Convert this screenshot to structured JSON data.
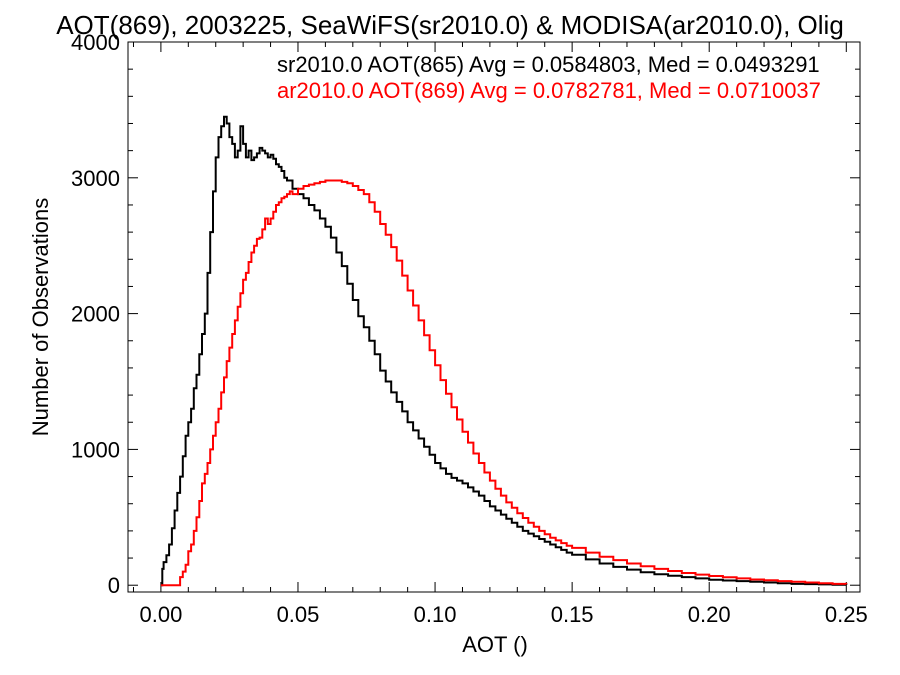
{
  "chart_data": {
    "type": "line",
    "title": "AOT(869), 2003225, SeaWiFS(sr2010.0) & MODISA(ar2010.0), Olig",
    "xlabel": "AOT ()",
    "ylabel": "Number of Observations",
    "xlim": [
      -0.012,
      0.255
    ],
    "ylim": [
      -50,
      4000
    ],
    "x_ticks": [
      0.0,
      0.05,
      0.1,
      0.15,
      0.2,
      0.25
    ],
    "x_tick_labels": [
      "0.00",
      "0.05",
      "0.10",
      "0.15",
      "0.20",
      "0.25"
    ],
    "y_ticks": [
      0,
      1000,
      2000,
      3000,
      4000
    ],
    "y_tick_labels": [
      "0",
      "1000",
      "2000",
      "3000",
      "4000"
    ],
    "grid": false,
    "legend_placement": "top-right",
    "annotations": [
      {
        "text": "sr2010.0 AOT(865) Avg = 0.0584803, Med = 0.0493291",
        "color": "#000000"
      },
      {
        "text": "ar2010.0 AOT(869) Avg = 0.0782781, Med = 0.0710037",
        "color": "#ff0000"
      }
    ],
    "series": [
      {
        "color": "#000000",
        "points": [
          [
            0.0,
            0
          ],
          [
            0.0005,
            120
          ],
          [
            0.001,
            170
          ],
          [
            0.002,
            220
          ],
          [
            0.003,
            300
          ],
          [
            0.004,
            420
          ],
          [
            0.005,
            550
          ],
          [
            0.006,
            680
          ],
          [
            0.007,
            800
          ],
          [
            0.008,
            950
          ],
          [
            0.009,
            1100
          ],
          [
            0.01,
            1200
          ],
          [
            0.011,
            1300
          ],
          [
            0.012,
            1450
          ],
          [
            0.013,
            1550
          ],
          [
            0.014,
            1700
          ],
          [
            0.015,
            1850
          ],
          [
            0.016,
            2000
          ],
          [
            0.017,
            2300
          ],
          [
            0.018,
            2600
          ],
          [
            0.019,
            2900
          ],
          [
            0.02,
            3150
          ],
          [
            0.021,
            3300
          ],
          [
            0.022,
            3380
          ],
          [
            0.023,
            3450
          ],
          [
            0.024,
            3400
          ],
          [
            0.025,
            3300
          ],
          [
            0.026,
            3250
          ],
          [
            0.027,
            3150
          ],
          [
            0.028,
            3200
          ],
          [
            0.029,
            3380
          ],
          [
            0.03,
            3250
          ],
          [
            0.031,
            3150
          ],
          [
            0.032,
            3200
          ],
          [
            0.033,
            3130
          ],
          [
            0.034,
            3150
          ],
          [
            0.035,
            3180
          ],
          [
            0.036,
            3220
          ],
          [
            0.037,
            3200
          ],
          [
            0.038,
            3180
          ],
          [
            0.039,
            3150
          ],
          [
            0.04,
            3170
          ],
          [
            0.041,
            3140
          ],
          [
            0.042,
            3100
          ],
          [
            0.043,
            3080
          ],
          [
            0.044,
            3050
          ],
          [
            0.045,
            3000
          ],
          [
            0.046,
            2980
          ],
          [
            0.048,
            2920
          ],
          [
            0.05,
            2880
          ],
          [
            0.052,
            2850
          ],
          [
            0.054,
            2800
          ],
          [
            0.056,
            2760
          ],
          [
            0.058,
            2700
          ],
          [
            0.06,
            2640
          ],
          [
            0.062,
            2560
          ],
          [
            0.064,
            2450
          ],
          [
            0.066,
            2350
          ],
          [
            0.068,
            2220
          ],
          [
            0.07,
            2100
          ],
          [
            0.072,
            1980
          ],
          [
            0.074,
            1900
          ],
          [
            0.076,
            1800
          ],
          [
            0.078,
            1700
          ],
          [
            0.08,
            1580
          ],
          [
            0.082,
            1500
          ],
          [
            0.084,
            1420
          ],
          [
            0.086,
            1350
          ],
          [
            0.088,
            1280
          ],
          [
            0.09,
            1200
          ],
          [
            0.092,
            1140
          ],
          [
            0.094,
            1080
          ],
          [
            0.096,
            1020
          ],
          [
            0.098,
            960
          ],
          [
            0.1,
            900
          ],
          [
            0.102,
            860
          ],
          [
            0.104,
            820
          ],
          [
            0.106,
            790
          ],
          [
            0.108,
            770
          ],
          [
            0.11,
            750
          ],
          [
            0.112,
            720
          ],
          [
            0.114,
            690
          ],
          [
            0.116,
            660
          ],
          [
            0.118,
            620
          ],
          [
            0.12,
            580
          ],
          [
            0.122,
            550
          ],
          [
            0.124,
            520
          ],
          [
            0.126,
            490
          ],
          [
            0.128,
            460
          ],
          [
            0.13,
            430
          ],
          [
            0.132,
            400
          ],
          [
            0.134,
            380
          ],
          [
            0.136,
            360
          ],
          [
            0.138,
            340
          ],
          [
            0.14,
            320
          ],
          [
            0.142,
            300
          ],
          [
            0.144,
            280
          ],
          [
            0.146,
            260
          ],
          [
            0.148,
            240
          ],
          [
            0.15,
            225
          ],
          [
            0.155,
            190
          ],
          [
            0.16,
            160
          ],
          [
            0.165,
            135
          ],
          [
            0.17,
            115
          ],
          [
            0.175,
            95
          ],
          [
            0.18,
            80
          ],
          [
            0.185,
            70
          ],
          [
            0.19,
            60
          ],
          [
            0.195,
            50
          ],
          [
            0.2,
            40
          ],
          [
            0.205,
            35
          ],
          [
            0.21,
            30
          ],
          [
            0.215,
            25
          ],
          [
            0.22,
            20
          ],
          [
            0.225,
            15
          ],
          [
            0.23,
            10
          ],
          [
            0.235,
            8
          ],
          [
            0.24,
            6
          ],
          [
            0.245,
            4
          ],
          [
            0.25,
            2
          ]
        ]
      },
      {
        "color": "#ff0000",
        "points": [
          [
            0.0,
            0
          ],
          [
            0.006,
            0
          ],
          [
            0.007,
            60
          ],
          [
            0.008,
            100
          ],
          [
            0.009,
            150
          ],
          [
            0.01,
            250
          ],
          [
            0.011,
            300
          ],
          [
            0.012,
            400
          ],
          [
            0.013,
            500
          ],
          [
            0.014,
            620
          ],
          [
            0.015,
            750
          ],
          [
            0.016,
            820
          ],
          [
            0.017,
            900
          ],
          [
            0.018,
            1000
          ],
          [
            0.019,
            1100
          ],
          [
            0.02,
            1200
          ],
          [
            0.021,
            1300
          ],
          [
            0.022,
            1420
          ],
          [
            0.023,
            1530
          ],
          [
            0.024,
            1650
          ],
          [
            0.025,
            1750
          ],
          [
            0.026,
            1850
          ],
          [
            0.027,
            1950
          ],
          [
            0.028,
            2050
          ],
          [
            0.029,
            2150
          ],
          [
            0.03,
            2250
          ],
          [
            0.031,
            2300
          ],
          [
            0.032,
            2380
          ],
          [
            0.033,
            2450
          ],
          [
            0.034,
            2500
          ],
          [
            0.035,
            2550
          ],
          [
            0.036,
            2560
          ],
          [
            0.037,
            2620
          ],
          [
            0.038,
            2700
          ],
          [
            0.039,
            2660
          ],
          [
            0.04,
            2700
          ],
          [
            0.041,
            2750
          ],
          [
            0.042,
            2800
          ],
          [
            0.043,
            2820
          ],
          [
            0.044,
            2850
          ],
          [
            0.045,
            2860
          ],
          [
            0.046,
            2880
          ],
          [
            0.047,
            2900
          ],
          [
            0.048,
            2880
          ],
          [
            0.05,
            2920
          ],
          [
            0.052,
            2940
          ],
          [
            0.054,
            2950
          ],
          [
            0.056,
            2960
          ],
          [
            0.058,
            2970
          ],
          [
            0.06,
            2980
          ],
          [
            0.062,
            2980
          ],
          [
            0.064,
            2980
          ],
          [
            0.066,
            2970
          ],
          [
            0.068,
            2960
          ],
          [
            0.07,
            2940
          ],
          [
            0.072,
            2910
          ],
          [
            0.074,
            2880
          ],
          [
            0.076,
            2820
          ],
          [
            0.078,
            2750
          ],
          [
            0.08,
            2660
          ],
          [
            0.082,
            2580
          ],
          [
            0.084,
            2490
          ],
          [
            0.086,
            2390
          ],
          [
            0.088,
            2280
          ],
          [
            0.09,
            2170
          ],
          [
            0.092,
            2060
          ],
          [
            0.094,
            1950
          ],
          [
            0.096,
            1840
          ],
          [
            0.098,
            1730
          ],
          [
            0.1,
            1620
          ],
          [
            0.102,
            1510
          ],
          [
            0.104,
            1410
          ],
          [
            0.106,
            1310
          ],
          [
            0.108,
            1220
          ],
          [
            0.11,
            1130
          ],
          [
            0.112,
            1050
          ],
          [
            0.114,
            970
          ],
          [
            0.116,
            900
          ],
          [
            0.118,
            830
          ],
          [
            0.12,
            770
          ],
          [
            0.122,
            710
          ],
          [
            0.124,
            660
          ],
          [
            0.126,
            610
          ],
          [
            0.128,
            570
          ],
          [
            0.13,
            530
          ],
          [
            0.132,
            495
          ],
          [
            0.134,
            460
          ],
          [
            0.136,
            430
          ],
          [
            0.138,
            400
          ],
          [
            0.14,
            375
          ],
          [
            0.142,
            350
          ],
          [
            0.144,
            330
          ],
          [
            0.146,
            310
          ],
          [
            0.148,
            290
          ],
          [
            0.15,
            275
          ],
          [
            0.155,
            240
          ],
          [
            0.16,
            210
          ],
          [
            0.165,
            185
          ],
          [
            0.17,
            160
          ],
          [
            0.175,
            140
          ],
          [
            0.18,
            120
          ],
          [
            0.185,
            105
          ],
          [
            0.19,
            90
          ],
          [
            0.195,
            78
          ],
          [
            0.2,
            68
          ],
          [
            0.205,
            58
          ],
          [
            0.21,
            50
          ],
          [
            0.215,
            42
          ],
          [
            0.22,
            36
          ],
          [
            0.225,
            30
          ],
          [
            0.23,
            25
          ],
          [
            0.235,
            20
          ],
          [
            0.24,
            15
          ],
          [
            0.245,
            10
          ],
          [
            0.25,
            8
          ]
        ]
      }
    ]
  }
}
